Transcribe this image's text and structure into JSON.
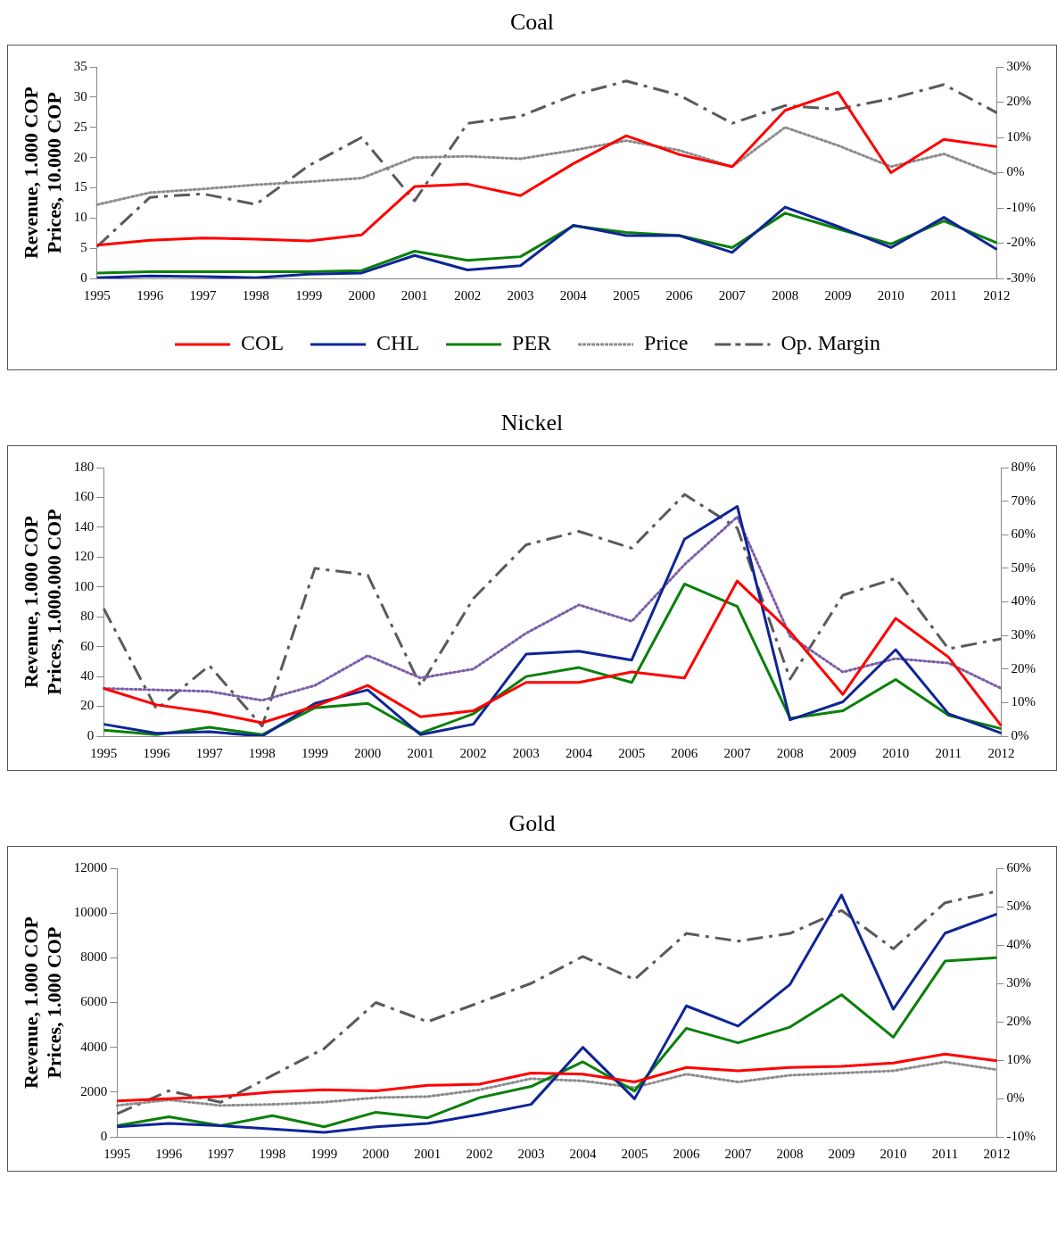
{
  "chart_data": [
    {
      "type": "line",
      "title": "Coal",
      "ylabel": "Revenue, 1.000 COP\nPrices, 10.000 COP",
      "legend": "bottom",
      "grid": false,
      "marker": "none",
      "categories": [
        "1995",
        "1996",
        "1997",
        "1998",
        "1999",
        "2000",
        "2001",
        "2002",
        "2003",
        "2004",
        "2005",
        "2006",
        "2007",
        "2008",
        "2009",
        "2010",
        "2011",
        "2012"
      ],
      "ylim": [
        0,
        35
      ],
      "yticks": [
        0,
        5,
        10,
        15,
        20,
        25,
        30,
        35
      ],
      "y2lim": [
        -30,
        30
      ],
      "y2ticks": [
        {
          "value": -30,
          "label": "-30%"
        },
        {
          "value": -20,
          "label": "-20%"
        },
        {
          "value": -10,
          "label": "-10%"
        },
        {
          "value": 0,
          "label": "0%"
        },
        {
          "value": 10,
          "label": "10%"
        },
        {
          "value": 20,
          "label": "20%"
        },
        {
          "value": 30,
          "label": "30%"
        }
      ],
      "series": [
        {
          "name": "COL",
          "color": "#ff0000",
          "line_style": "solid",
          "values": [
            5.5,
            6.3,
            6.7,
            6.5,
            6.2,
            7.2,
            15.2,
            15.6,
            13.7,
            19,
            23.6,
            20.5,
            18.5,
            27.8,
            30.8,
            17.5,
            23,
            21.8
          ]
        },
        {
          "name": "CHL",
          "color": "#0f2596",
          "line_style": "solid",
          "values": [
            0.1,
            0.4,
            0.3,
            0.1,
            0.7,
            0.9,
            3.8,
            1.4,
            2.1,
            8.8,
            7.1,
            7.1,
            4.3,
            11.8,
            8.6,
            5.1,
            10.1,
            4.8
          ]
        },
        {
          "name": "PER",
          "color": "#0a800a",
          "line_style": "solid",
          "values": [
            0.9,
            1.1,
            1.1,
            1.1,
            1.1,
            1.3,
            4.5,
            3.0,
            3.6,
            8.7,
            7.6,
            7.1,
            5.1,
            10.8,
            8.2,
            5.7,
            9.5,
            5.9
          ]
        },
        {
          "name": "Price",
          "color": "#8c8c8c",
          "line_style": "dotted",
          "values": [
            12.2,
            14.2,
            14.8,
            15.5,
            16.0,
            16.6,
            20.0,
            20.2,
            19.8,
            21.2,
            22.8,
            21.2,
            18.5,
            25.0,
            22.0,
            18.5,
            20.6,
            17.2
          ]
        },
        {
          "name": "Op. Margin",
          "color": "#5a5a5a",
          "line_style": "dashed",
          "axis": "y2",
          "values": [
            -21,
            -7,
            -6,
            -9,
            2,
            10,
            -8,
            14,
            16,
            22,
            26,
            22,
            14,
            19,
            18,
            21,
            25,
            17
          ]
        }
      ]
    },
    {
      "type": "line",
      "title": "Nickel",
      "ylabel": "Revenue, 1.000 COP\nPrices, 1.000.000 COP",
      "legend": false,
      "grid": false,
      "marker": "none",
      "categories": [
        "1995",
        "1996",
        "1997",
        "1998",
        "1999",
        "2000",
        "2001",
        "2002",
        "2003",
        "2004",
        "2005",
        "2006",
        "2007",
        "2008",
        "2009",
        "2010",
        "2011",
        "2012"
      ],
      "ylim": [
        0,
        180
      ],
      "yticks": [
        0,
        20,
        40,
        60,
        80,
        100,
        120,
        140,
        160,
        180
      ],
      "y2lim": [
        0,
        80
      ],
      "y2ticks": [
        {
          "value": 0,
          "label": "0%"
        },
        {
          "value": 10,
          "label": "10%"
        },
        {
          "value": 20,
          "label": "20%"
        },
        {
          "value": 30,
          "label": "30%"
        },
        {
          "value": 40,
          "label": "40%"
        },
        {
          "value": 50,
          "label": "50%"
        },
        {
          "value": 60,
          "label": "60%"
        },
        {
          "value": 70,
          "label": "70%"
        },
        {
          "value": 80,
          "label": "80%"
        }
      ],
      "series": [
        {
          "color": "#ff0000",
          "line_style": "solid",
          "values": [
            32,
            21,
            16,
            9,
            20,
            34,
            13,
            17,
            36,
            36,
            43,
            39,
            104,
            70,
            28,
            79,
            53,
            7
          ]
        },
        {
          "color": "#0f2596",
          "line_style": "solid",
          "values": [
            8,
            2,
            3,
            0,
            22,
            31,
            1,
            8,
            55,
            57,
            51,
            132,
            154,
            11,
            23,
            58,
            15,
            2
          ]
        },
        {
          "color": "#0a800a",
          "line_style": "solid",
          "values": [
            4,
            1,
            6,
            1,
            19,
            22,
            2,
            15,
            40,
            46,
            36,
            102,
            87,
            12,
            17,
            38,
            14,
            5
          ]
        },
        {
          "color": "#7b5ea7",
          "line_style": "dotted",
          "values": [
            32,
            31,
            30,
            24,
            34,
            54,
            39,
            45,
            69,
            88,
            77,
            115,
            147,
            67,
            43,
            52,
            49,
            32
          ]
        },
        {
          "color": "#5a5a5a",
          "line_style": "dashed",
          "axis": "y2",
          "values": [
            38,
            8,
            21,
            3,
            50,
            48,
            15,
            41,
            57,
            61,
            56,
            72,
            62,
            17,
            42,
            47,
            26,
            29
          ]
        }
      ]
    },
    {
      "type": "line",
      "title": "Gold",
      "ylabel": "Revenue, 1.000 COP\nPrices, 1.000 COP",
      "legend": false,
      "grid": false,
      "marker": "none",
      "categories": [
        "1995",
        "1996",
        "1997",
        "1998",
        "1999",
        "2000",
        "2001",
        "2002",
        "2003",
        "2004",
        "2005",
        "2006",
        "2007",
        "2008",
        "2009",
        "2010",
        "2011",
        "2012"
      ],
      "ylim": [
        0,
        12000
      ],
      "yticks": [
        0,
        2000,
        4000,
        6000,
        8000,
        10000,
        12000
      ],
      "y2lim": [
        -10,
        60
      ],
      "y2ticks": [
        {
          "value": -10,
          "label": "-10%"
        },
        {
          "value": 0,
          "label": "0%"
        },
        {
          "value": 10,
          "label": "10%"
        },
        {
          "value": 20,
          "label": "20%"
        },
        {
          "value": 30,
          "label": "30%"
        },
        {
          "value": 40,
          "label": "40%"
        },
        {
          "value": 50,
          "label": "50%"
        },
        {
          "value": 60,
          "label": "60%"
        }
      ],
      "series": [
        {
          "color": "#ff0000",
          "line_style": "solid",
          "values": [
            1600,
            1700,
            1800,
            2000,
            2100,
            2050,
            2300,
            2350,
            2850,
            2800,
            2450,
            3100,
            2950,
            3100,
            3150,
            3300,
            3700,
            3400
          ]
        },
        {
          "color": "#0f2596",
          "line_style": "solid",
          "values": [
            450,
            600,
            500,
            350,
            200,
            450,
            600,
            1000,
            1450,
            4000,
            1700,
            5850,
            4950,
            6800,
            10800,
            5700,
            9100,
            9950
          ]
        },
        {
          "color": "#0a800a",
          "line_style": "solid",
          "values": [
            500,
            900,
            500,
            950,
            450,
            1100,
            850,
            1750,
            2250,
            3350,
            2050,
            4850,
            4200,
            4900,
            6350,
            4450,
            7850,
            8000
          ]
        },
        {
          "color": "#8c8c8c",
          "line_style": "dotted",
          "values": [
            1400,
            1650,
            1400,
            1450,
            1550,
            1750,
            1800,
            2100,
            2600,
            2500,
            2200,
            2800,
            2450,
            2750,
            2850,
            2950,
            3350,
            3000
          ]
        },
        {
          "color": "#5a5a5a",
          "line_style": "dashed",
          "axis": "y2",
          "values": [
            -4,
            2,
            -1,
            6,
            13,
            25,
            20,
            25,
            30,
            37,
            31,
            43,
            41,
            43,
            49,
            39,
            51,
            54
          ]
        }
      ]
    }
  ]
}
